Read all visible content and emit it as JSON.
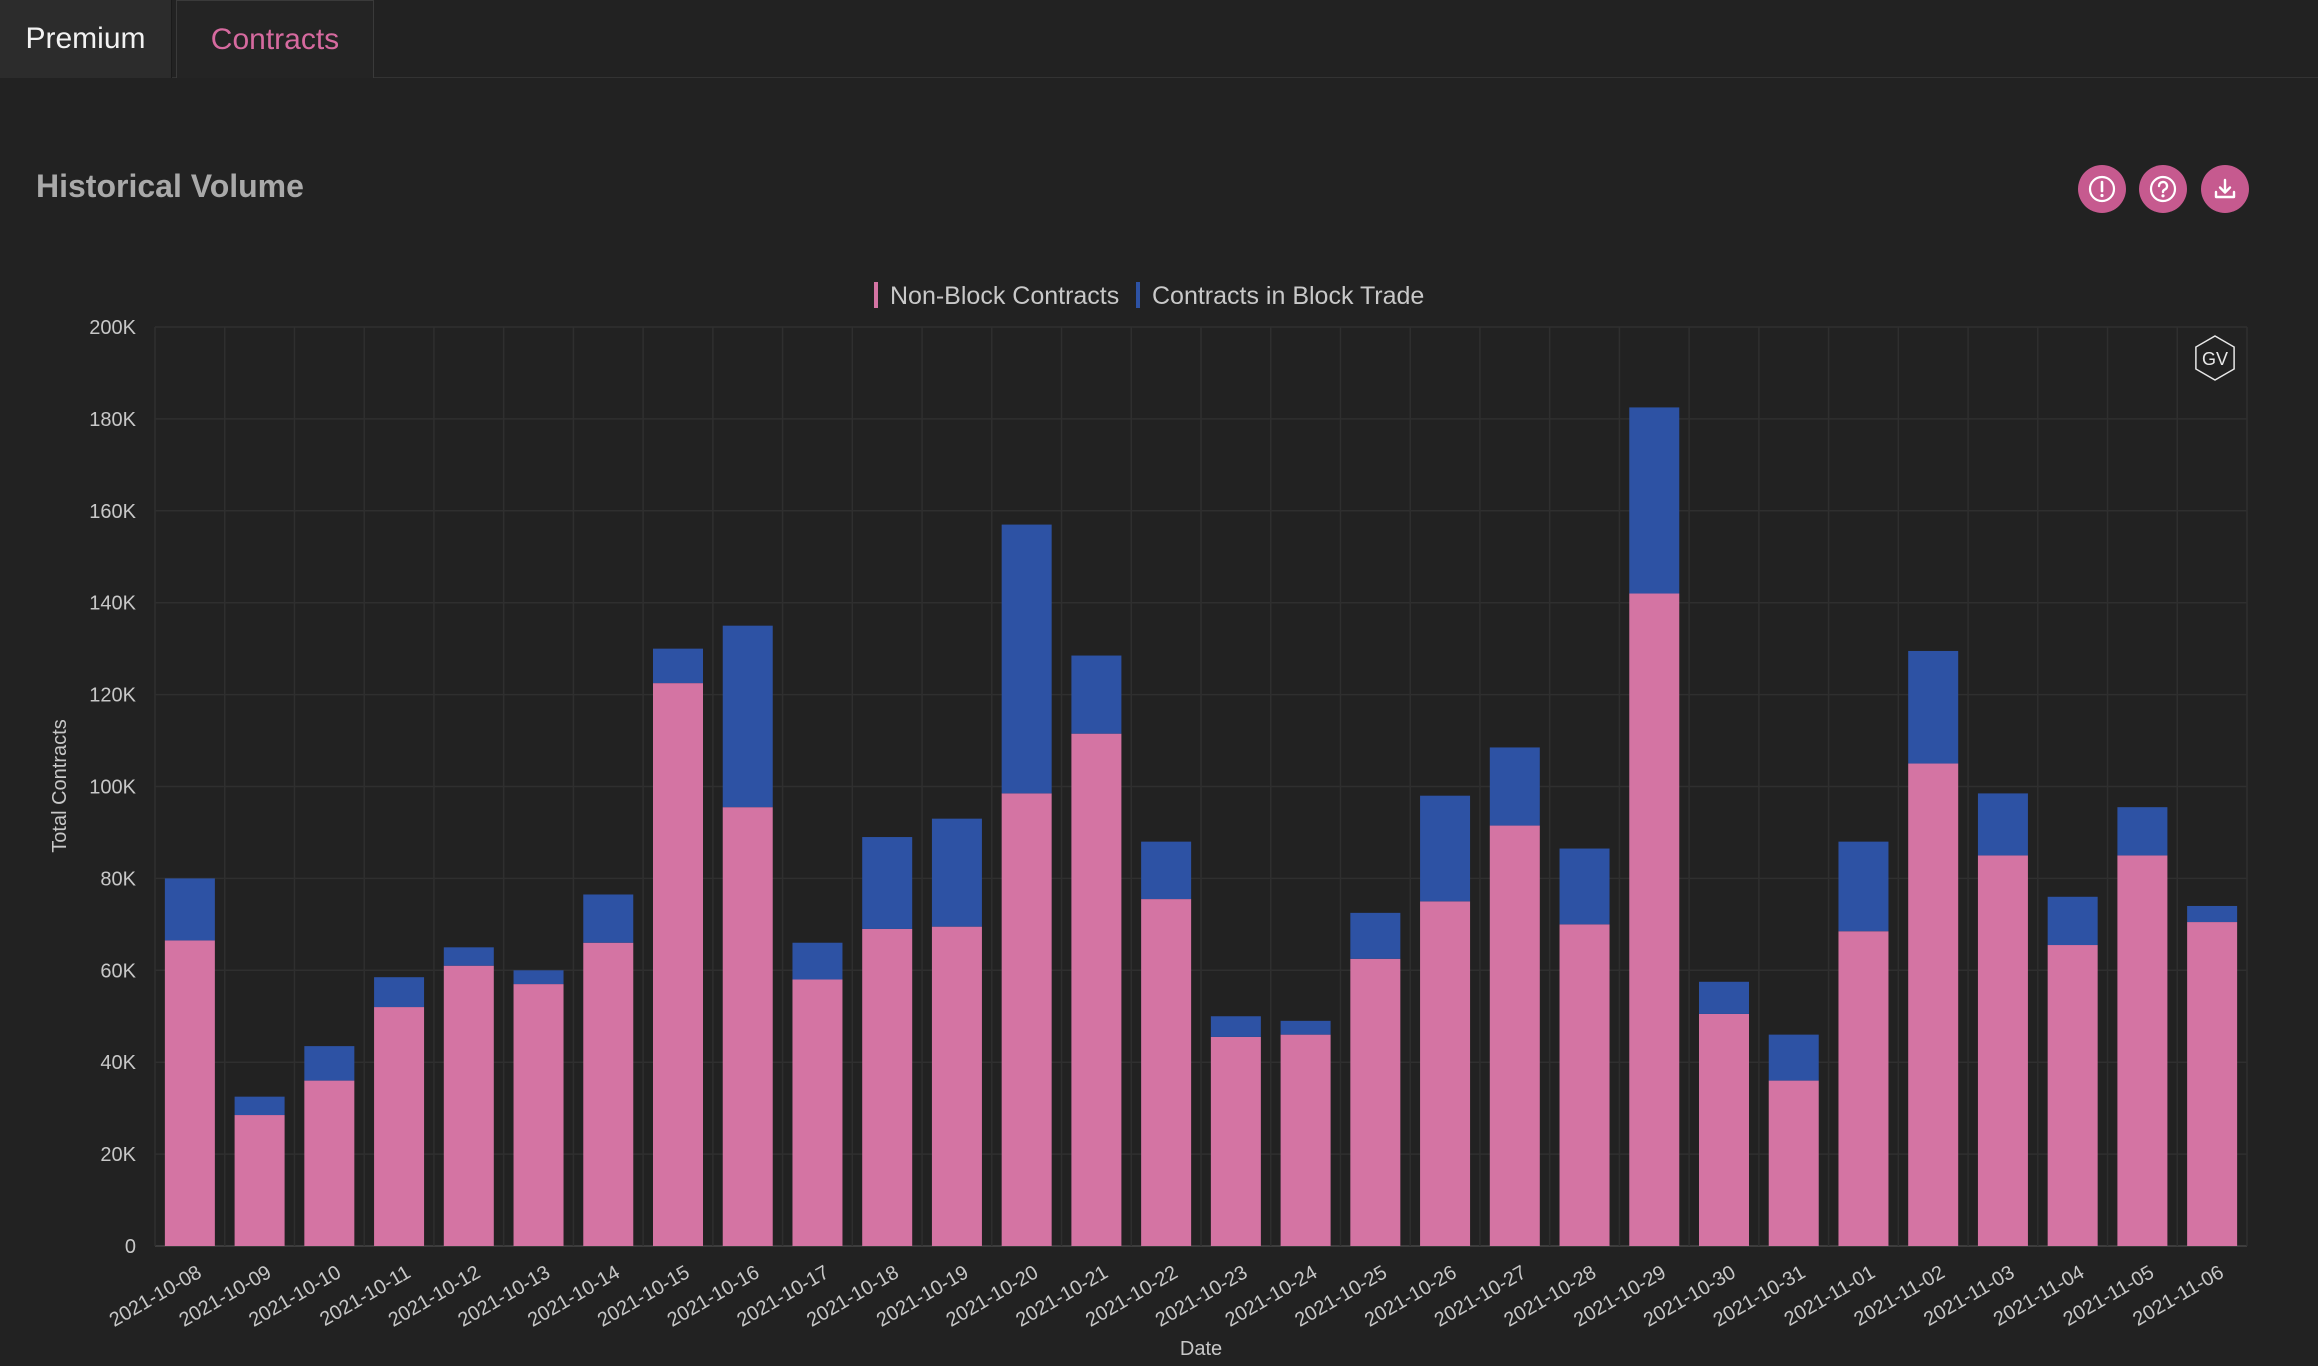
{
  "tabs": [
    {
      "label": "Premium"
    },
    {
      "label": "Contracts"
    }
  ],
  "header": {
    "title": "Historical Volume"
  },
  "icons": {
    "info": "alert-circle-icon",
    "help": "help-circle-icon",
    "download": "download-icon",
    "watermark": "gv-logo-icon"
  },
  "watermark_text": "GV",
  "colors": {
    "non_block": "#d474a3",
    "block": "#2d52a4",
    "accent": "#c65a8f",
    "tab_active": "#d66a9f"
  },
  "chart_data": {
    "type": "bar",
    "stacked": true,
    "xlabel": "Date",
    "ylabel": "Total Contracts",
    "ylim": [
      0,
      200000
    ],
    "yticks": [
      "0",
      "20K",
      "40K",
      "60K",
      "80K",
      "100K",
      "120K",
      "140K",
      "160K",
      "180K",
      "200K"
    ],
    "grid": true,
    "legend_position": "top-center",
    "categories": [
      "2021-10-08",
      "2021-10-09",
      "2021-10-10",
      "2021-10-11",
      "2021-10-12",
      "2021-10-13",
      "2021-10-14",
      "2021-10-15",
      "2021-10-16",
      "2021-10-17",
      "2021-10-18",
      "2021-10-19",
      "2021-10-20",
      "2021-10-21",
      "2021-10-22",
      "2021-10-23",
      "2021-10-24",
      "2021-10-25",
      "2021-10-26",
      "2021-10-27",
      "2021-10-28",
      "2021-10-29",
      "2021-10-30",
      "2021-10-31",
      "2021-11-01",
      "2021-11-02",
      "2021-11-03",
      "2021-11-04",
      "2021-11-05",
      "2021-11-06"
    ],
    "series": [
      {
        "name": "Non-Block Contracts",
        "color": "#d474a3",
        "values": [
          66500,
          28500,
          36000,
          52000,
          61000,
          57000,
          66000,
          122500,
          95500,
          58000,
          69000,
          69500,
          98500,
          111500,
          75500,
          45500,
          46000,
          62500,
          75000,
          91500,
          70000,
          142000,
          50500,
          36000,
          68500,
          105000,
          85000,
          65500,
          85000,
          70500
        ]
      },
      {
        "name": "Contracts in Block Trade",
        "color": "#2d52a4",
        "values": [
          13500,
          4000,
          7500,
          6500,
          4000,
          3000,
          10500,
          7500,
          39500,
          8000,
          20000,
          23500,
          58500,
          17000,
          12500,
          4500,
          3000,
          10000,
          23000,
          17000,
          16500,
          40500,
          7000,
          10000,
          19500,
          24500,
          13500,
          10500,
          10500,
          3500
        ]
      }
    ]
  }
}
